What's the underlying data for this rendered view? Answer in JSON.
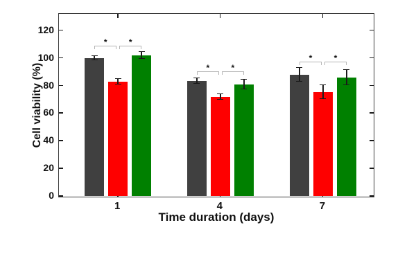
{
  "figure": {
    "background": "#ffffff",
    "axis_color": "#3a3a3a",
    "bracket_color": "#b3b3b3"
  },
  "chart_data": {
    "type": "bar",
    "title": "",
    "xlabel": "Time duration (days)",
    "ylabel": "Cell viability (%)",
    "categories": [
      "1",
      "4",
      "7"
    ],
    "series": [
      {
        "name": "black",
        "color": "#404040",
        "values": [
          100,
          83.5,
          88
        ],
        "errors": [
          1.5,
          2,
          5
        ]
      },
      {
        "name": "red",
        "color": "#fe0000",
        "values": [
          83,
          72,
          75.5
        ],
        "errors": [
          2,
          2,
          5
        ]
      },
      {
        "name": "green",
        "color": "#008000",
        "values": [
          102,
          81,
          86
        ],
        "errors": [
          2.5,
          3.5,
          5.5
        ]
      }
    ],
    "ylim": [
      0,
      132
    ],
    "yticks": [
      0,
      20,
      40,
      60,
      80,
      100,
      120
    ],
    "grid": false,
    "legend": null,
    "significance": [
      {
        "group": 0,
        "y": 109,
        "brackets": [
          {
            "from": 0,
            "to": 1,
            "label": "*"
          },
          {
            "from": 1,
            "to": 2,
            "label": "*"
          }
        ]
      },
      {
        "group": 1,
        "y": 90.5,
        "brackets": [
          {
            "from": 0,
            "to": 1,
            "label": "*"
          },
          {
            "from": 1,
            "to": 2,
            "label": "*"
          }
        ]
      },
      {
        "group": 2,
        "y": 97.5,
        "brackets": [
          {
            "from": 0,
            "to": 1,
            "label": "*"
          },
          {
            "from": 1,
            "to": 2,
            "label": "*"
          }
        ]
      }
    ]
  }
}
